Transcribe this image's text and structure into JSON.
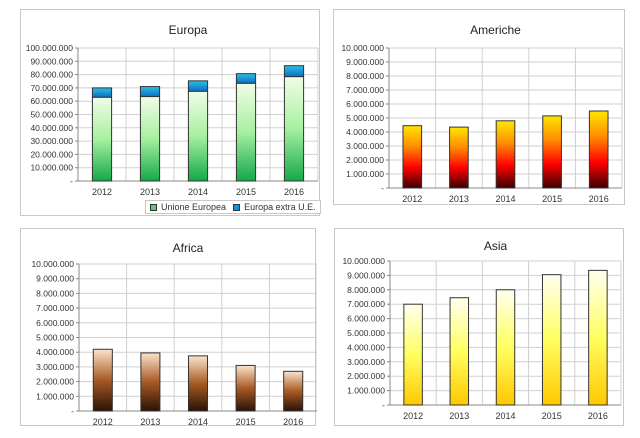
{
  "chart_data": [
    {
      "id": "europa",
      "type": "bar",
      "stacked": true,
      "title": "Europa",
      "categories": [
        "2012",
        "2013",
        "2014",
        "2015",
        "2016"
      ],
      "ylim": [
        0,
        100000000
      ],
      "yticks": [
        "-",
        "10.000.000",
        "20.000.000",
        "30.000.000",
        "40.000.000",
        "50.000.000",
        "60.000.000",
        "70.000.000",
        "80.000.000",
        "90.000.000",
        "100.000.000"
      ],
      "grid": true,
      "legend": "bottom",
      "series": [
        {
          "name": "Unione Europea",
          "values": [
            63000000,
            63500000,
            67500000,
            73500000,
            78500000
          ],
          "colors": [
            "#14a84a",
            "#a6f0a0",
            "#f2fce8"
          ]
        },
        {
          "name": "Europa extra U.E.",
          "values": [
            7000000,
            7500000,
            7800000,
            7200000,
            8200000
          ],
          "colors": [
            "#0a6fc8",
            "#2ec0e0"
          ]
        }
      ]
    },
    {
      "id": "americhe",
      "type": "bar",
      "title": "Americhe",
      "categories": [
        "2012",
        "2013",
        "2014",
        "2015",
        "2016"
      ],
      "ylim": [
        0,
        10000000
      ],
      "yticks": [
        "-",
        "1.000.000",
        "2.000.000",
        "3.000.000",
        "4.000.000",
        "5.000.000",
        "6.000.000",
        "7.000.000",
        "8.000.000",
        "9.000.000",
        "10.000.000"
      ],
      "grid": true,
      "series": [
        {
          "name": "Americhe",
          "values": [
            4450000,
            4350000,
            4800000,
            5150000,
            5500000
          ],
          "colors": [
            "#3a0000",
            "#ff0000",
            "#ff8c00",
            "#ffe600"
          ]
        }
      ]
    },
    {
      "id": "africa",
      "type": "bar",
      "title": "Africa",
      "categories": [
        "2012",
        "2013",
        "2014",
        "2015",
        "2016"
      ],
      "ylim": [
        0,
        10000000
      ],
      "yticks": [
        "-",
        "1.000.000",
        "2.000.000",
        "3.000.000",
        "4.000.000",
        "5.000.000",
        "6.000.000",
        "7.000.000",
        "8.000.000",
        "9.000.000",
        "10.000.000"
      ],
      "grid": true,
      "series": [
        {
          "name": "Africa",
          "values": [
            4200000,
            3950000,
            3750000,
            3100000,
            2700000
          ],
          "colors": [
            "#2a1206",
            "#a85a24",
            "#fbe4cc"
          ]
        }
      ]
    },
    {
      "id": "asia",
      "type": "bar",
      "title": "Asia",
      "categories": [
        "2012",
        "2013",
        "2014",
        "2015",
        "2016"
      ],
      "ylim": [
        0,
        10000000
      ],
      "yticks": [
        "-",
        "1.000.000",
        "2.000.000",
        "3.000.000",
        "4.000.000",
        "5.000.000",
        "6.000.000",
        "7.000.000",
        "8.000.000",
        "9.000.000",
        "10.000.000"
      ],
      "grid": true,
      "series": [
        {
          "name": "Asia",
          "values": [
            7000000,
            7450000,
            8000000,
            9050000,
            9350000
          ],
          "colors": [
            "#ffc800",
            "#ffff60",
            "#fffff0"
          ]
        }
      ]
    }
  ]
}
